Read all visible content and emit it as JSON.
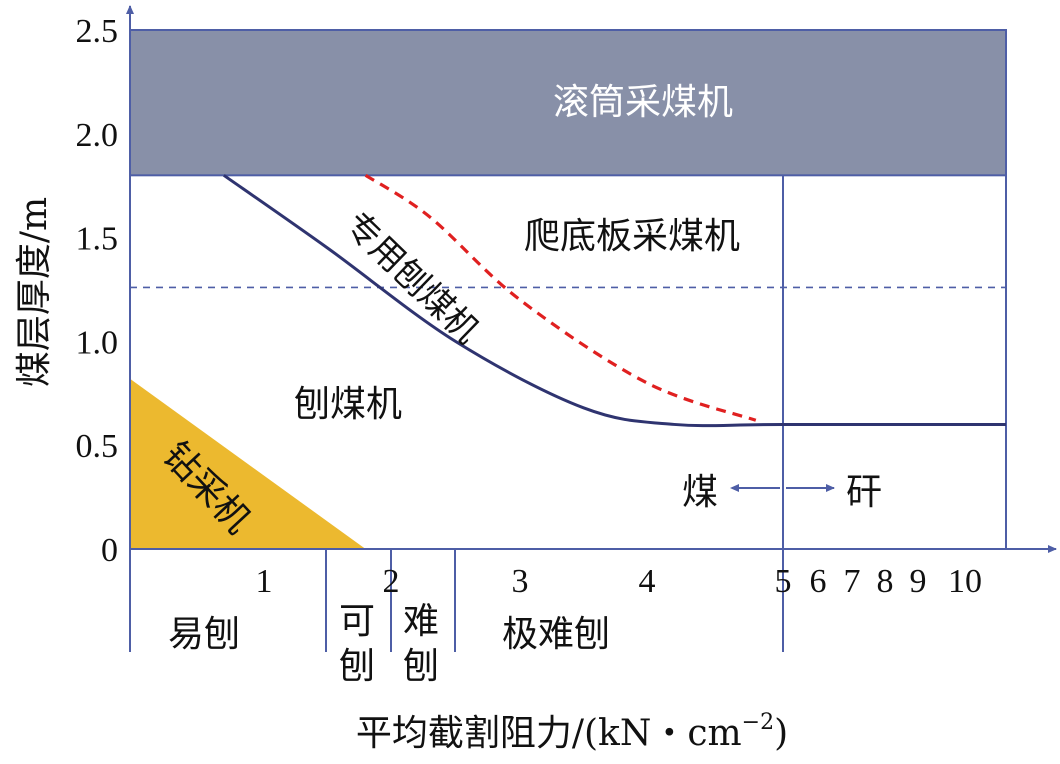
{
  "chart_data": {
    "type": "area",
    "ylabel": "煤层厚度/m",
    "xlabel_main": "平均截割阻力/(kN・cm",
    "xlabel_sup": "−2",
    "xlabel_close": ")",
    "ylim": [
      0,
      2.5
    ],
    "y_ticks": [
      "0",
      "0.5",
      "1.0",
      "1.5",
      "2.0",
      "2.5"
    ],
    "x_ticks": [
      "1",
      "2",
      "3",
      "4",
      "5",
      "6",
      "7",
      "8",
      "9",
      "10"
    ],
    "regions": {
      "drum": "滚筒采煤机",
      "floor": "爬底板采煤机",
      "plough": "刨煤机",
      "drill": "钻采机",
      "special": "专用刨煤机"
    },
    "rock_labels": {
      "coal": "煤",
      "rock": "矸"
    },
    "categories": [
      {
        "id": "easy",
        "lines": [
          "易刨"
        ]
      },
      {
        "id": "able",
        "lines": [
          "可",
          "刨"
        ]
      },
      {
        "id": "hard",
        "lines": [
          "难",
          "刨"
        ]
      },
      {
        "id": "very",
        "lines": [
          "极难刨"
        ]
      }
    ],
    "colors": {
      "axis": "#4e5ea6",
      "drum_fill": "#8890a8",
      "drill_fill": "#ecb92f",
      "plough_line": "#2f3470",
      "special_line": "#e02020"
    },
    "drum_band": [
      1.8,
      2.5
    ],
    "drill_triangle": {
      "y_at_origin": 0.82,
      "x_at_zero": 1.8
    },
    "dashed_ref_y": 1.26,
    "plough_boundary": [
      [
        0.7,
        1.8
      ],
      [
        1.5,
        1.45
      ],
      [
        2.5,
        1.0
      ],
      [
        3.5,
        0.68
      ],
      [
        4.2,
        0.6
      ],
      [
        5.0,
        0.6
      ],
      [
        10.0,
        0.6
      ]
    ],
    "special_boundary": [
      [
        1.8,
        1.8
      ],
      [
        2.3,
        1.6
      ],
      [
        3.0,
        1.2
      ],
      [
        4.0,
        0.8
      ],
      [
        4.8,
        0.62
      ]
    ]
  }
}
